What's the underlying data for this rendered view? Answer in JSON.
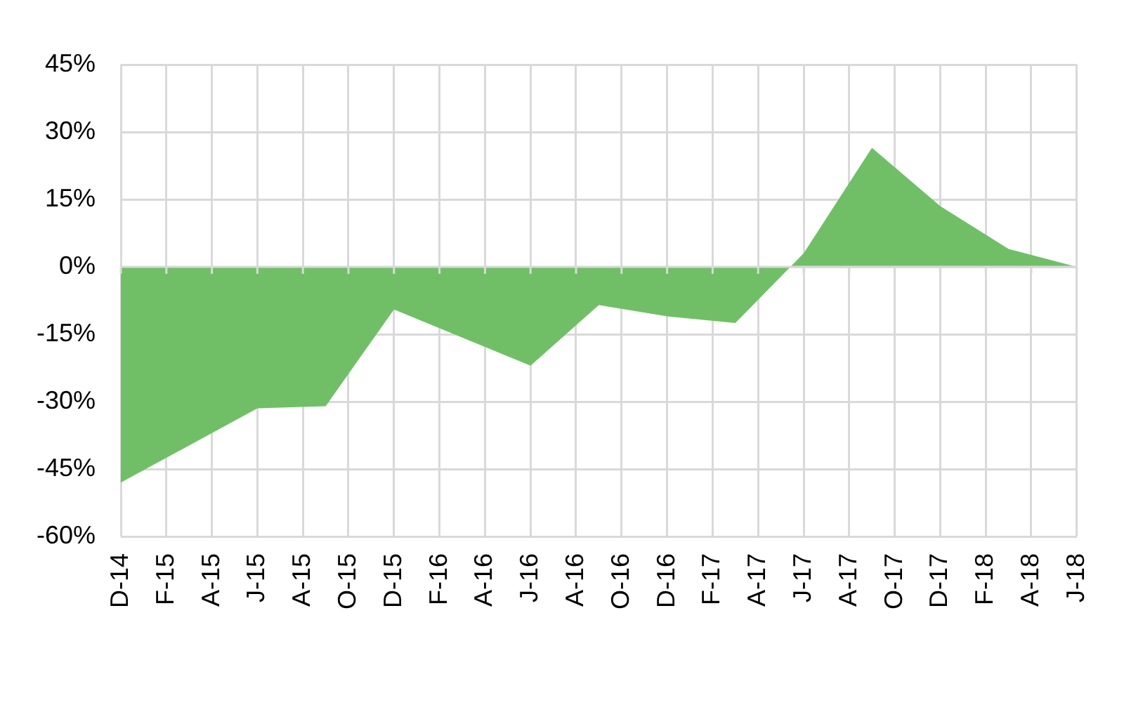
{
  "chart_data": {
    "type": "area",
    "x": [
      "2014-12",
      "2015-06",
      "2015-09",
      "2015-12",
      "2016-06",
      "2016-09",
      "2016-12",
      "2017-03",
      "2017-06",
      "2017-09",
      "2017-12",
      "2018-03",
      "2018-06"
    ],
    "values": [
      -48,
      -31.5,
      -31,
      -9.5,
      -22,
      -8.5,
      -11,
      -12.5,
      3,
      26.5,
      13.5,
      4,
      0
    ],
    "color": "#70bf67",
    "xlim": [
      "2014-12",
      "2018-06"
    ],
    "xticks": [
      {
        "value": "2014-12",
        "label": "D-14"
      },
      {
        "value": "2015-02",
        "label": "F-15"
      },
      {
        "value": "2015-04",
        "label": "A-15"
      },
      {
        "value": "2015-06",
        "label": "J-15"
      },
      {
        "value": "2015-08",
        "label": "A-15"
      },
      {
        "value": "2015-10",
        "label": "O-15"
      },
      {
        "value": "2015-12",
        "label": "D-15"
      },
      {
        "value": "2016-02",
        "label": "F-16"
      },
      {
        "value": "2016-04",
        "label": "A-16"
      },
      {
        "value": "2016-06",
        "label": "J-16"
      },
      {
        "value": "2016-08",
        "label": "A-16"
      },
      {
        "value": "2016-10",
        "label": "O-16"
      },
      {
        "value": "2016-12",
        "label": "D-16"
      },
      {
        "value": "2017-02",
        "label": "F-17"
      },
      {
        "value": "2017-04",
        "label": "A-17"
      },
      {
        "value": "2017-06",
        "label": "J-17"
      },
      {
        "value": "2017-08",
        "label": "A-17"
      },
      {
        "value": "2017-10",
        "label": "O-17"
      },
      {
        "value": "2017-12",
        "label": "D-17"
      },
      {
        "value": "2018-02",
        "label": "F-18"
      },
      {
        "value": "2018-04",
        "label": "A-18"
      },
      {
        "value": "2018-06",
        "label": "J-18"
      }
    ],
    "ylim": [
      -60,
      45
    ],
    "yticks": [
      {
        "value": -60,
        "label": "-60%"
      },
      {
        "value": -45,
        "label": "-45%"
      },
      {
        "value": -30,
        "label": "-30%"
      },
      {
        "value": -15,
        "label": "-15%"
      },
      {
        "value": 0,
        "label": "0%"
      },
      {
        "value": 15,
        "label": "15%"
      },
      {
        "value": 30,
        "label": "30%"
      },
      {
        "value": 45,
        "label": "45%"
      }
    ],
    "grid": true
  }
}
